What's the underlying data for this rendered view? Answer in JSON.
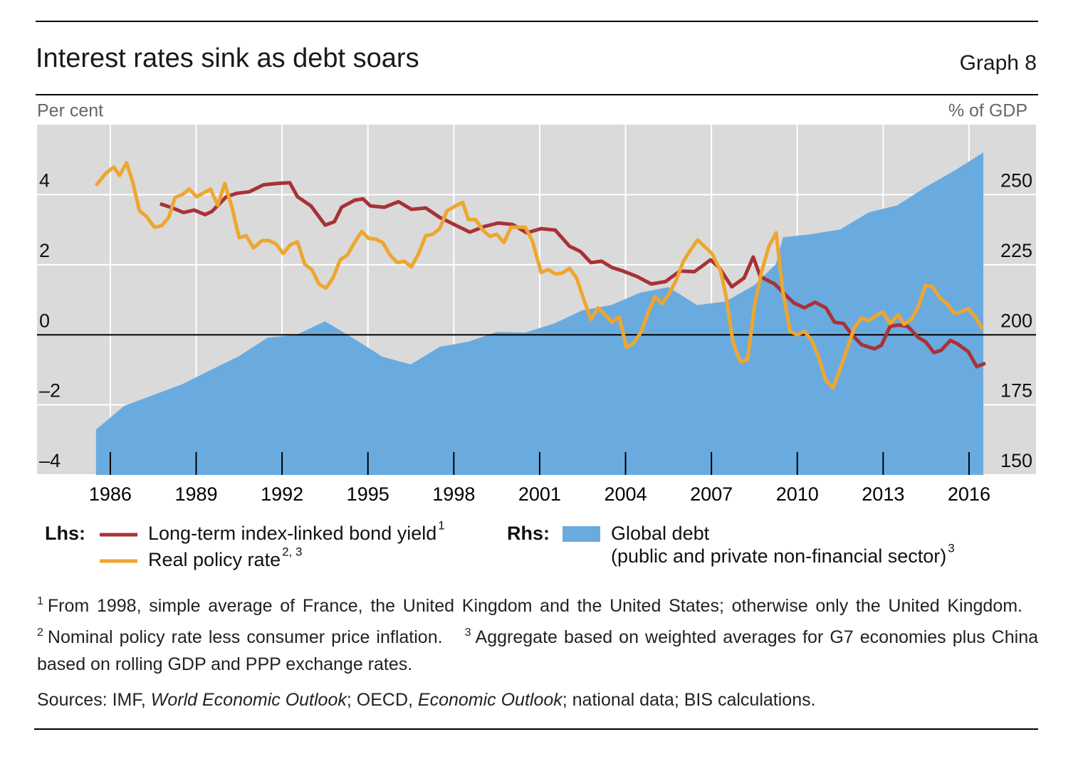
{
  "chart_data": {
    "type": "line",
    "title": "Interest rates sink as debt soars",
    "graph_label": "Graph 8",
    "y_axis_label": "Per cent",
    "y2_axis_label": "% of GDP",
    "lhs_label": "Lhs:",
    "rhs_label": "Rhs:",
    "xlim": [
      1983.94,
      2018.84
    ],
    "xticks": [
      {
        "value": 1986.5,
        "label": "1986"
      },
      {
        "value": 1989.5,
        "label": "1989"
      },
      {
        "value": 1992.5,
        "label": "1992"
      },
      {
        "value": 1995.5,
        "label": "1995"
      },
      {
        "value": 1998.5,
        "label": "1998"
      },
      {
        "value": 2001.5,
        "label": "2001"
      },
      {
        "value": 2004.5,
        "label": "2004"
      },
      {
        "value": 2007.5,
        "label": "2007"
      },
      {
        "value": 2010.5,
        "label": "2010"
      },
      {
        "value": 2013.5,
        "label": "2013"
      },
      {
        "value": 2016.5,
        "label": "2016"
      }
    ],
    "ylim": [
      -4,
      6
    ],
    "yticks": [
      {
        "value": -4,
        "label": "–4"
      },
      {
        "value": -2,
        "label": "–2"
      },
      0,
      2,
      4
    ],
    "y2lim": [
      150,
      275
    ],
    "y2ticks": [
      150,
      175,
      200,
      225,
      250
    ],
    "grid": true,
    "series": [
      {
        "name": "Long-term index-linked bond yield",
        "note": "1",
        "color": "#a83236",
        "type": "line",
        "x": [
          1988.24,
          1988.61,
          1989.06,
          1989.43,
          1989.81,
          1990.05,
          1990.55,
          1990.93,
          1991.35,
          1991.85,
          1992.34,
          1992.77,
          1993.04,
          1993.51,
          1994.01,
          1994.33,
          1994.58,
          1995.03,
          1995.33,
          1995.58,
          1996.07,
          1996.57,
          1997.02,
          1997.52,
          1998.01,
          1998.56,
          1999.06,
          1999.56,
          2000.05,
          2000.55,
          2001.05,
          2001.55,
          2002.04,
          2002.54,
          2002.92,
          2003.29,
          2003.66,
          2004.03,
          2004.41,
          2004.91,
          2005.4,
          2005.9,
          2006.4,
          2006.9,
          2007.14,
          2007.47,
          2007.77,
          2008.21,
          2008.64,
          2008.96,
          2009.21,
          2009.71,
          2010.0,
          2010.38,
          2010.75,
          2011.12,
          2011.5,
          2011.8,
          2012.12,
          2012.37,
          2012.74,
          2013.19,
          2013.44,
          2013.74,
          2014.03,
          2014.36,
          2014.73,
          2014.98,
          2015.28,
          2015.53,
          2015.85,
          2016.1,
          2016.47,
          2016.77,
          2017.07
        ],
        "values": [
          3.74,
          3.64,
          3.49,
          3.56,
          3.43,
          3.52,
          3.94,
          4.04,
          4.08,
          4.28,
          4.32,
          4.34,
          3.94,
          3.68,
          3.13,
          3.23,
          3.64,
          3.84,
          3.88,
          3.68,
          3.64,
          3.8,
          3.58,
          3.62,
          3.35,
          3.13,
          2.93,
          3.09,
          3.19,
          3.15,
          2.91,
          3.03,
          2.99,
          2.53,
          2.38,
          2.06,
          2.1,
          1.92,
          1.82,
          1.66,
          1.45,
          1.52,
          1.82,
          1.8,
          1.94,
          2.14,
          1.92,
          1.37,
          1.62,
          2.22,
          1.66,
          1.45,
          1.21,
          0.91,
          0.77,
          0.93,
          0.77,
          0.36,
          0.32,
          0.04,
          -0.28,
          -0.4,
          -0.3,
          0.24,
          0.28,
          0.24,
          -0.08,
          -0.2,
          -0.51,
          -0.44,
          -0.16,
          -0.26,
          -0.48,
          -0.91,
          -0.81
        ]
      },
      {
        "name": "Real policy rate",
        "note": "2, 3",
        "color": "#eea62f",
        "type": "line",
        "x": [
          1986.0,
          1986.32,
          1986.62,
          1986.82,
          1987.07,
          1987.27,
          1987.52,
          1987.77,
          1988.04,
          1988.29,
          1988.54,
          1988.76,
          1989.01,
          1989.26,
          1989.51,
          1990.0,
          1990.25,
          1990.5,
          1990.75,
          1991.0,
          1991.25,
          1991.5,
          1991.8,
          1992.04,
          1992.29,
          1992.54,
          1992.79,
          1993.04,
          1993.29,
          1993.54,
          1993.79,
          1994.03,
          1994.28,
          1994.53,
          1994.78,
          1995.03,
          1995.28,
          1995.53,
          1995.78,
          1996.02,
          1996.27,
          1996.52,
          1996.77,
          1997.02,
          1997.27,
          1997.52,
          1997.77,
          1998.01,
          1998.26,
          1998.56,
          1998.81,
          1999.01,
          1999.26,
          1999.51,
          1999.76,
          2000.0,
          2000.25,
          2000.5,
          2001.0,
          2001.25,
          2001.55,
          2001.8,
          2002.04,
          2002.29,
          2002.54,
          2002.79,
          2003.04,
          2003.29,
          2003.54,
          2003.79,
          2004.03,
          2004.28,
          2004.53,
          2004.78,
          2005.03,
          2005.28,
          2005.53,
          2005.78,
          2006.02,
          2006.27,
          2006.52,
          2006.77,
          2007.02,
          2007.27,
          2007.52,
          2007.82,
          2008.01,
          2008.26,
          2008.51,
          2008.76,
          2009.01,
          2009.26,
          2009.51,
          2009.76,
          2010.0,
          2010.25,
          2010.5,
          2010.75,
          2011.0,
          2011.25,
          2011.5,
          2011.75,
          2012.0,
          2012.24,
          2012.49,
          2012.74,
          2012.99,
          2013.29,
          2013.49,
          2013.74,
          2014.03,
          2014.23,
          2014.48,
          2014.73,
          2014.98,
          2015.23,
          2015.48,
          2015.73,
          2015.98,
          2016.22,
          2016.47,
          2016.72,
          2016.97
        ],
        "values": [
          4.26,
          4.59,
          4.79,
          4.55,
          4.91,
          4.4,
          3.54,
          3.37,
          3.07,
          3.11,
          3.35,
          3.92,
          4.0,
          4.16,
          3.94,
          4.16,
          3.7,
          4.32,
          3.64,
          2.77,
          2.83,
          2.48,
          2.69,
          2.69,
          2.59,
          2.32,
          2.57,
          2.65,
          2.02,
          1.86,
          1.45,
          1.33,
          1.62,
          2.14,
          2.28,
          2.63,
          2.95,
          2.75,
          2.73,
          2.63,
          2.28,
          2.06,
          2.1,
          1.94,
          2.32,
          2.83,
          2.87,
          3.03,
          3.54,
          3.68,
          3.78,
          3.29,
          3.29,
          2.99,
          2.81,
          2.87,
          2.63,
          3.07,
          3.07,
          2.67,
          1.78,
          1.86,
          1.74,
          1.76,
          1.9,
          1.62,
          1.01,
          0.44,
          0.77,
          0.57,
          0.36,
          0.51,
          -0.36,
          -0.24,
          0.06,
          0.61,
          1.09,
          0.89,
          1.17,
          1.56,
          2.1,
          2.42,
          2.71,
          2.51,
          2.32,
          1.82,
          1.11,
          -0.24,
          -0.77,
          -0.71,
          0.85,
          1.82,
          2.53,
          2.91,
          1.21,
          0.1,
          0.0,
          0.1,
          -0.16,
          -0.65,
          -1.31,
          -1.52,
          -0.97,
          -0.4,
          0.2,
          0.48,
          0.4,
          0.57,
          0.65,
          0.32,
          0.57,
          0.3,
          0.44,
          0.81,
          1.41,
          1.37,
          1.05,
          0.89,
          0.61,
          0.65,
          0.75,
          0.51,
          0.16
        ]
      },
      {
        "name": "Global debt",
        "name_line2": "(public and private non-financial sector)",
        "note": "3",
        "color": "#6aabdf",
        "type": "area",
        "axis": "y2",
        "x": [
          1986,
          1987,
          1988,
          1989,
          1990,
          1991,
          1992,
          1993,
          1994,
          1995,
          1996,
          1997,
          1998,
          1999,
          2000,
          2001,
          2002,
          2003,
          2004,
          2005,
          2006,
          2007,
          2008,
          2009,
          2009.75,
          2010,
          2011,
          2012,
          2013,
          2014,
          2015,
          2016,
          2017
        ],
        "values": [
          166.2,
          174.7,
          178.5,
          182.3,
          187.4,
          192.4,
          199.0,
          200.0,
          204.8,
          198.7,
          192.2,
          189.4,
          195.7,
          197.5,
          201.0,
          200.8,
          204.0,
          208.8,
          210.6,
          215.0,
          217.0,
          210.6,
          211.9,
          217.7,
          225.2,
          234.8,
          235.9,
          237.6,
          243.7,
          246.2,
          252.8,
          258.6,
          265.1
        ]
      }
    ],
    "footnotes": [
      {
        "mark": "1",
        "text": "From 1998, simple average of France, the United Kingdom and the United States; otherwise only the United Kingdom."
      },
      {
        "mark": "2",
        "text": "Nominal policy rate less consumer price inflation."
      },
      {
        "mark": "3",
        "text": "Aggregate based on weighted averages for G7 economies plus China based on rolling GDP and PPP exchange rates."
      }
    ],
    "sources": [
      "Sources: IMF, ",
      "World Economic Outlook",
      "; OECD, ",
      "Economic Outlook",
      "; national data; BIS calculations."
    ]
  }
}
